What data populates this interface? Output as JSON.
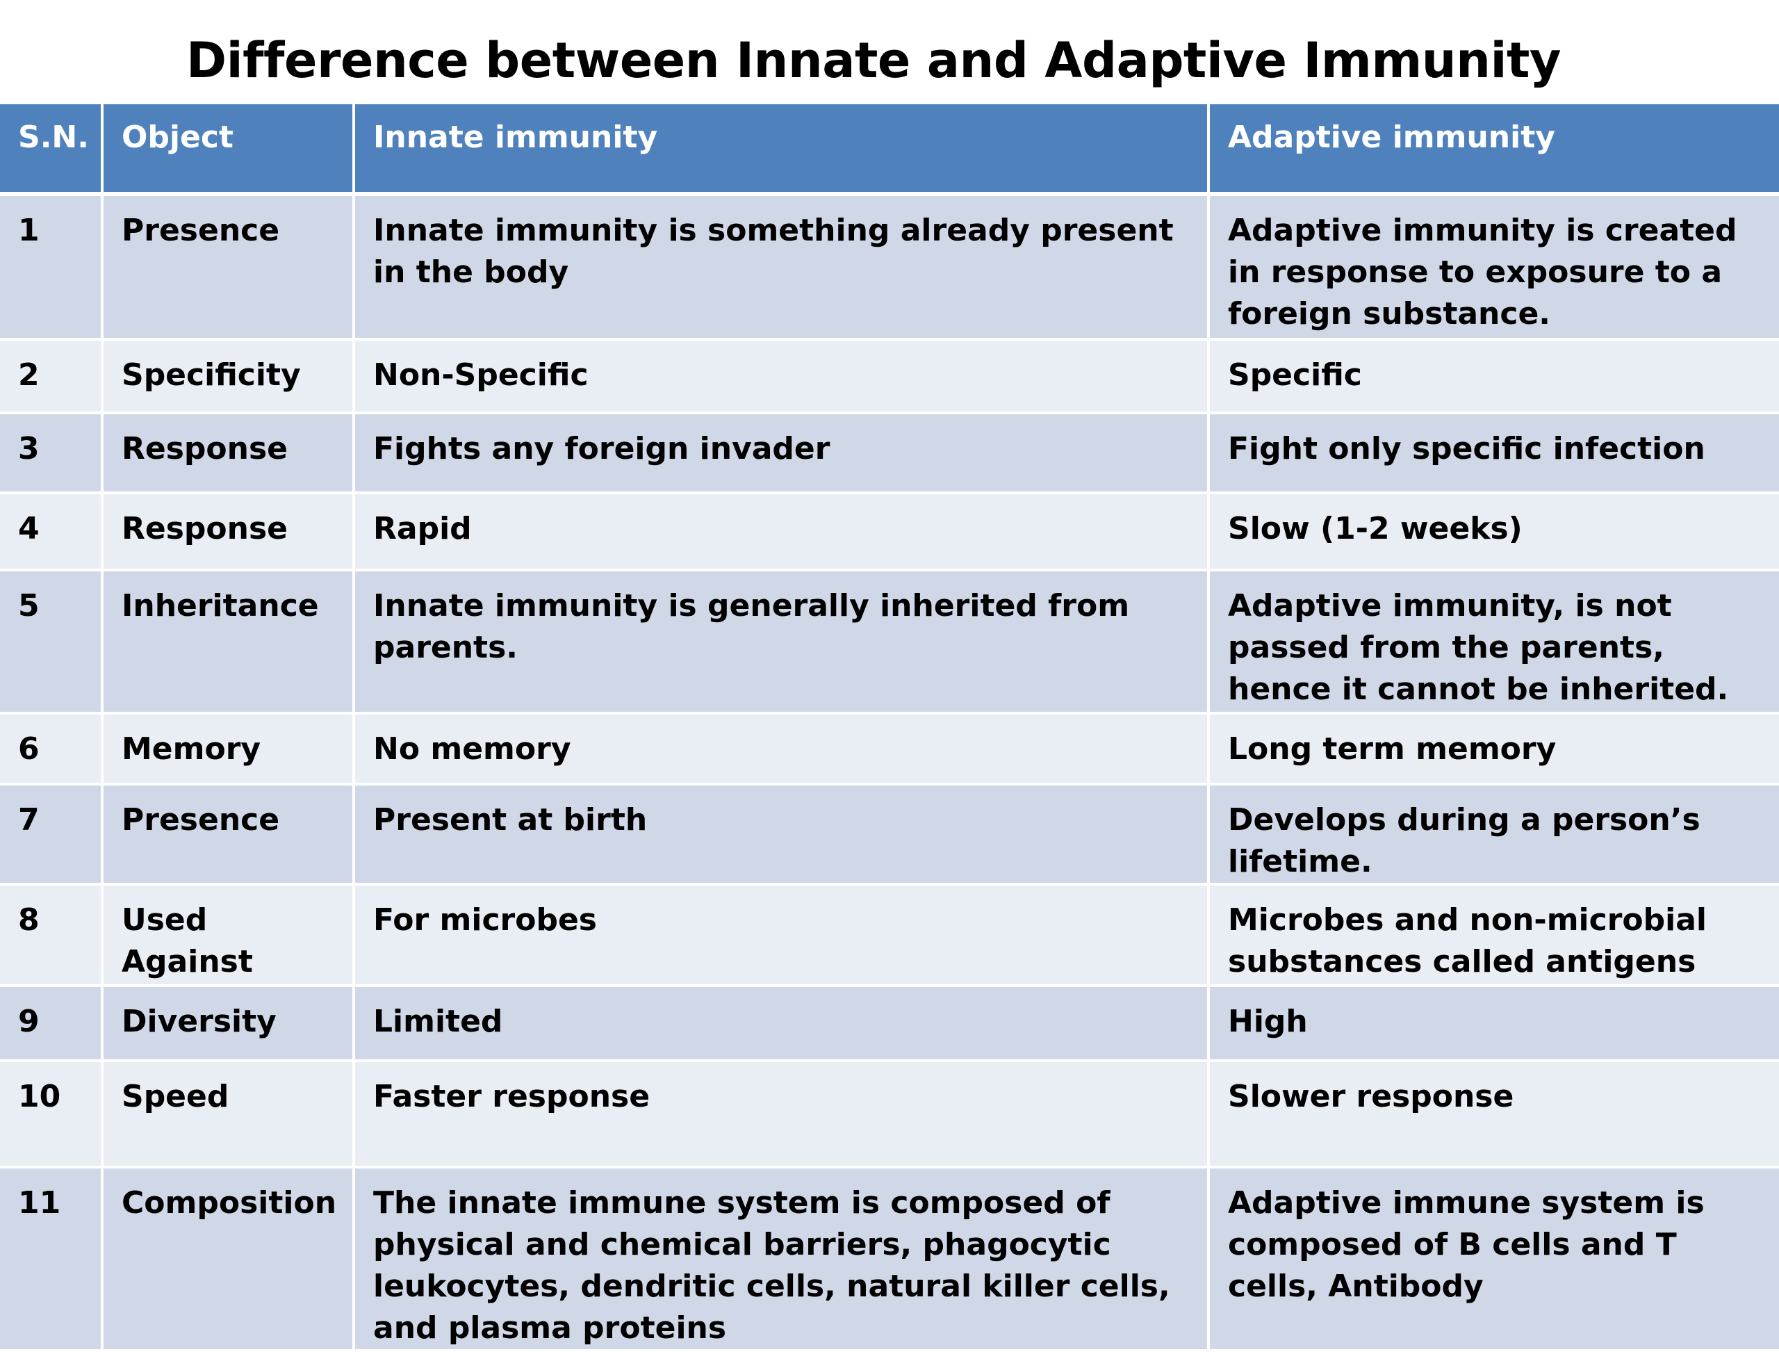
{
  "title": "Difference between Innate and Adaptive Immunity",
  "table": {
    "headers": [
      "S.N.",
      "Object",
      "Innate immunity",
      "Adaptive immunity"
    ],
    "rows": [
      [
        "1",
        "Presence",
        "Innate immunity is something already present in the body",
        "Adaptive immunity is created in response to exposure to a foreign substance."
      ],
      [
        "2",
        "Specificity",
        "Non-Specific",
        "Specific"
      ],
      [
        "3",
        "Response",
        "Fights any foreign invader",
        "Fight only specific infection"
      ],
      [
        "4",
        "Response",
        "Rapid",
        "Slow (1-2 weeks)"
      ],
      [
        "5",
        "Inheritance",
        "Innate immunity is generally inherited from parents.",
        "Adaptive immunity, is not passed from the parents, hence it cannot be inherited."
      ],
      [
        "6",
        "Memory",
        "No memory",
        "Long term memory"
      ],
      [
        "7",
        "Presence",
        "Present at birth",
        "Develops during a person’s lifetime."
      ],
      [
        "8",
        "Used Against",
        "For microbes",
        "Microbes and non-microbial substances called antigens"
      ],
      [
        "9",
        "Diversity",
        "Limited",
        "High"
      ],
      [
        "10",
        "Speed",
        "Faster response",
        "Slower response"
      ],
      [
        "11",
        "Composition",
        "The innate immune system is composed of physical and chemical barriers, phagocytic leukocytes, dendritic cells, natural killer cells, and plasma proteins",
        "Adaptive immune system is composed of B cells and T cells, Antibody"
      ]
    ]
  },
  "colors": {
    "header_bg": "#4f81bd",
    "row_odd_bg": "#d0d8e8",
    "row_even_bg": "#e9edf4"
  }
}
